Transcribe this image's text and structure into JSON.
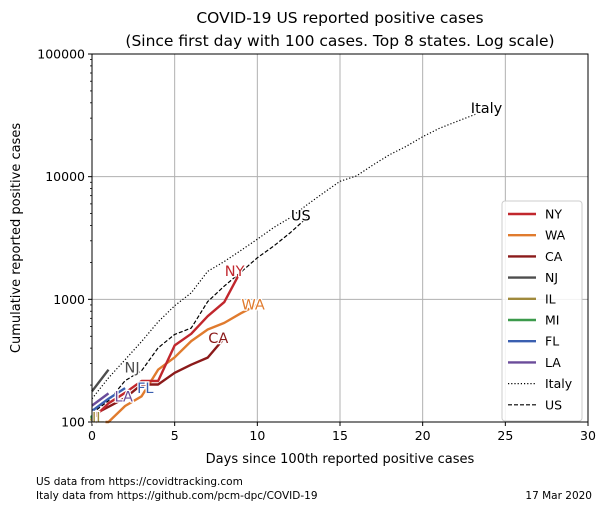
{
  "chart_data": {
    "type": "line",
    "title": "COVID-19 US reported positive cases",
    "subtitle": "(Since first day with 100 cases. Top 8 states. Log scale)",
    "xlabel": "Days since 100th reported positive cases",
    "ylabel": "Cumulative reported positive cases",
    "xlim": [
      0,
      30
    ],
    "ylim": [
      100,
      100000
    ],
    "yscale": "log",
    "grid": true,
    "legend_position": "right",
    "x_ticks": [
      "0",
      "5",
      "10",
      "15",
      "20",
      "25",
      "30"
    ],
    "y_ticks": [
      "100",
      "1000",
      "10000",
      "100000"
    ],
    "series": [
      {
        "name": "NY",
        "color": "#c1272d",
        "style": "solid",
        "label": "NY",
        "x": [
          0,
          1,
          2,
          3,
          4,
          5,
          6,
          7,
          8,
          9
        ],
        "y": [
          105,
          142,
          173,
          216,
          216,
          421,
          524,
          729,
          950,
          1700
        ]
      },
      {
        "name": "WA",
        "color": "#e07b2e",
        "style": "solid",
        "label": "WA",
        "x": [
          0,
          1,
          2,
          3,
          4,
          5,
          6,
          7,
          8,
          9,
          10
        ],
        "y": [
          100,
          100,
          135,
          162,
          267,
          337,
          457,
          568,
          642,
          769,
          904
        ]
      },
      {
        "name": "CA",
        "color": "#8b1a1a",
        "style": "solid",
        "label": "CA",
        "x": [
          0,
          1,
          2,
          3,
          4,
          5,
          6,
          7,
          8
        ],
        "y": [
          113,
          133,
          157,
          202,
          202,
          252,
          293,
          335,
          483
        ]
      },
      {
        "name": "NJ",
        "color": "#4d4d4d",
        "style": "solid",
        "label": "NJ",
        "x": [
          0,
          1
        ],
        "y": [
          178,
          267
        ]
      },
      {
        "name": "IL",
        "color": "#a08a3c",
        "style": "solid",
        "label": "IL",
        "x": [
          0
        ],
        "y": [
          105
        ]
      },
      {
        "name": "MI",
        "color": "#3c9a4c",
        "style": "solid",
        "label": "",
        "x": [
          0
        ],
        "y": [
          110
        ]
      },
      {
        "name": "FL",
        "color": "#3a5fb0",
        "style": "solid",
        "label": "FL",
        "x": [
          0,
          1,
          2
        ],
        "y": [
          123,
          155,
          189
        ]
      },
      {
        "name": "LA",
        "color": "#6b4c9a",
        "style": "solid",
        "label": "LA",
        "x": [
          0,
          1
        ],
        "y": [
          136,
          171
        ]
      },
      {
        "name": "Italy",
        "color": "#000000",
        "style": "dotted",
        "label": "Italy",
        "x": [
          0,
          1,
          2,
          3,
          4,
          5,
          6,
          7,
          8,
          9,
          10,
          11,
          12,
          13,
          14,
          15,
          16,
          17,
          18,
          19,
          20,
          21,
          22,
          23,
          24
        ],
        "y": [
          155,
          229,
          322,
          453,
          655,
          888,
          1128,
          1694,
          2036,
          2502,
          3089,
          3858,
          4636,
          5883,
          7375,
          9172,
          10149,
          12462,
          15113,
          17660,
          21157,
          24747,
          27980,
          31506,
          35713
        ]
      },
      {
        "name": "US",
        "color": "#000000",
        "style": "dashed",
        "label": "US",
        "x": [
          0,
          1,
          2,
          3,
          4,
          5,
          6,
          7,
          8,
          9,
          10,
          11,
          12,
          13
        ],
        "y": [
          118,
          149,
          217,
          262,
          402,
          518,
          583,
          959,
          1281,
          1663,
          2179,
          2726,
          3499,
          4632
        ]
      }
    ]
  },
  "footer": {
    "source_us": "US data from https://covidtracking.com",
    "source_italy": "Italy data from https://github.com/pcm-dpc/COVID-19",
    "date": "17 Mar 2020"
  }
}
